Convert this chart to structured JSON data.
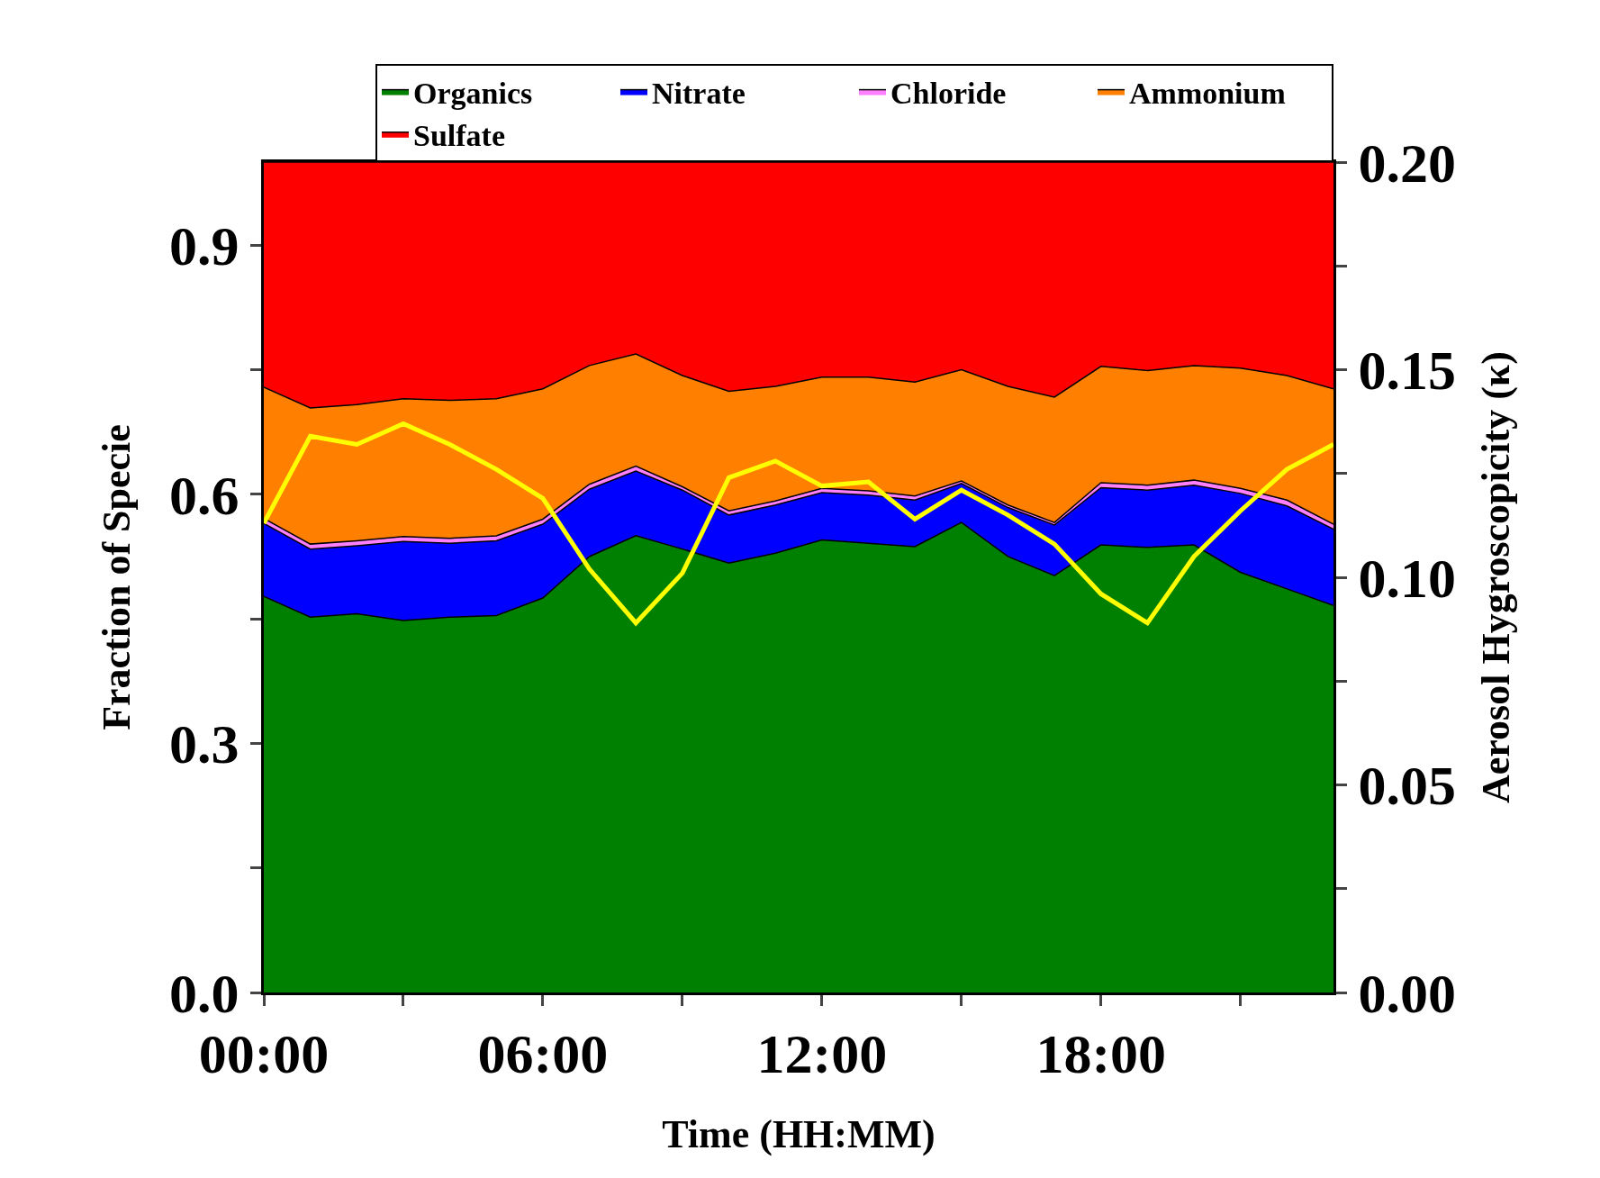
{
  "chart_data": {
    "type": "area",
    "stacked": true,
    "xlabel": "Time (HH:MM)",
    "ylabel": "Fraction of Specie",
    "y2label": "Aerosol Hygroscopicity (κ)",
    "x": [
      0,
      1,
      2,
      3,
      4,
      5,
      6,
      7,
      8,
      9,
      10,
      11,
      12,
      13,
      14,
      15,
      16,
      17,
      18,
      19,
      20,
      21,
      22,
      23
    ],
    "series": [
      {
        "name": "Organics",
        "color": "#008000",
        "values": [
          0.477,
          0.452,
          0.456,
          0.448,
          0.452,
          0.454,
          0.475,
          0.525,
          0.55,
          0.534,
          0.517,
          0.529,
          0.545,
          0.541,
          0.537,
          0.566,
          0.525,
          0.502,
          0.539,
          0.536,
          0.539,
          0.506,
          0.486,
          0.466
        ]
      },
      {
        "name": "Nitrate",
        "color": "#0000ff",
        "values": [
          0.088,
          0.082,
          0.082,
          0.095,
          0.089,
          0.09,
          0.089,
          0.081,
          0.078,
          0.071,
          0.058,
          0.058,
          0.057,
          0.058,
          0.056,
          0.047,
          0.059,
          0.061,
          0.069,
          0.069,
          0.072,
          0.095,
          0.1,
          0.092
        ]
      },
      {
        "name": "Chloride",
        "color": "#ff80ff",
        "values": [
          0.006,
          0.006,
          0.006,
          0.006,
          0.006,
          0.006,
          0.006,
          0.006,
          0.006,
          0.004,
          0.005,
          0.005,
          0.005,
          0.005,
          0.005,
          0.003,
          0.003,
          0.003,
          0.006,
          0.006,
          0.006,
          0.006,
          0.007,
          0.006
        ]
      },
      {
        "name": "Ammonium",
        "color": "#ff8000",
        "values": [
          0.158,
          0.164,
          0.164,
          0.166,
          0.166,
          0.165,
          0.157,
          0.143,
          0.135,
          0.134,
          0.144,
          0.138,
          0.134,
          0.137,
          0.137,
          0.134,
          0.143,
          0.151,
          0.14,
          0.138,
          0.138,
          0.145,
          0.15,
          0.163
        ]
      },
      {
        "name": "Sulfate",
        "color": "#ff0000",
        "values": [
          0.271,
          0.296,
          0.292,
          0.285,
          0.287,
          0.285,
          0.273,
          0.245,
          0.231,
          0.257,
          0.276,
          0.27,
          0.259,
          0.259,
          0.265,
          0.25,
          0.27,
          0.283,
          0.246,
          0.251,
          0.245,
          0.248,
          0.257,
          0.273
        ]
      },
      {
        "type": "line",
        "axis": "y2",
        "color": "#ffff00",
        "values": [
          0.113,
          0.134,
          0.132,
          0.137,
          0.132,
          0.126,
          0.119,
          0.102,
          0.089,
          0.101,
          0.124,
          0.128,
          0.122,
          0.123,
          0.114,
          0.121,
          0.115,
          0.108,
          0.096,
          0.089,
          0.105,
          0.116,
          0.126,
          0.132
        ]
      }
    ],
    "xlim": [
      0,
      23
    ],
    "xticks": [
      {
        "value": 0,
        "label": "00:00"
      },
      {
        "value": 3,
        "label": null
      },
      {
        "value": 6,
        "label": "06:00"
      },
      {
        "value": 9,
        "label": null
      },
      {
        "value": 12,
        "label": "12:00"
      },
      {
        "value": 15,
        "label": null
      },
      {
        "value": 18,
        "label": "18:00"
      },
      {
        "value": 21,
        "label": null
      }
    ],
    "ylim": [
      0,
      1
    ],
    "yticks": [
      {
        "value": 0,
        "label": "0.0"
      },
      {
        "value": 0.15,
        "label": null
      },
      {
        "value": 0.3,
        "label": "0.3"
      },
      {
        "value": 0.45,
        "label": null
      },
      {
        "value": 0.6,
        "label": "0.6"
      },
      {
        "value": 0.75,
        "label": null
      },
      {
        "value": 0.9,
        "label": "0.9"
      }
    ],
    "y2lim": [
      0,
      0.2
    ],
    "y2ticks": [
      {
        "value": 0,
        "label": "0.00"
      },
      {
        "value": 0.025,
        "label": null
      },
      {
        "value": 0.05,
        "label": "0.05"
      },
      {
        "value": 0.075,
        "label": null
      },
      {
        "value": 0.1,
        "label": "0.10"
      },
      {
        "value": 0.125,
        "label": null
      },
      {
        "value": 0.15,
        "label": "0.15"
      },
      {
        "value": 0.175,
        "label": null
      },
      {
        "value": 0.2,
        "label": "0.20"
      }
    ],
    "legend": "top right"
  }
}
